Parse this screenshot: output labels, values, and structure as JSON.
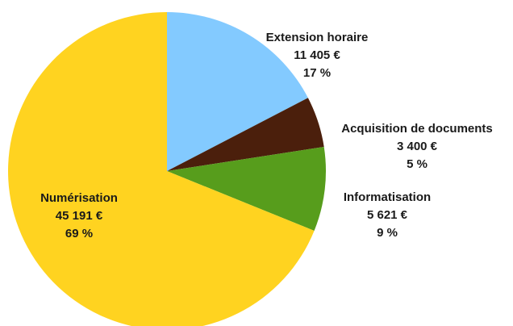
{
  "chart_data": {
    "type": "pie",
    "categories": [
      "Extension horaire",
      "Acquisition de documents",
      "Informatisation",
      "Numérisation"
    ],
    "values": [
      11405,
      3400,
      5621,
      45191
    ],
    "value_labels": [
      "11 405 €",
      "3 400 €",
      "5 621 €",
      "45 191 €"
    ],
    "percents": [
      17,
      5,
      9,
      69
    ],
    "percent_labels": [
      "17 %",
      "5 %",
      "9 %",
      "69 %"
    ],
    "colors": [
      "#83caff",
      "#4b1f0c",
      "#579d1c",
      "#ffd320"
    ]
  }
}
